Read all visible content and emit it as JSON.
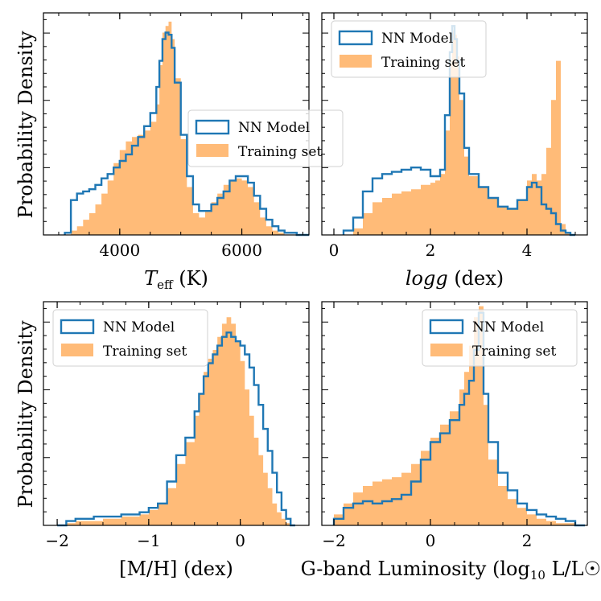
{
  "figure": {
    "ylabel_left": "Probability Density"
  },
  "colors": {
    "model": "#1f77b4",
    "training": "#ffbb78"
  },
  "chart_data": [
    {
      "type": "histogram",
      "panel": "top-left",
      "xlabel": "T_eff (K)",
      "xlabel_main": "T",
      "xlabel_sub": "eff",
      "xlabel_unit": " (K)",
      "xlim": [
        2750,
        7100
      ],
      "ylim": [
        0,
        1.0
      ],
      "xticks": [
        4000,
        6000
      ],
      "xtick_labels": [
        "4000",
        "6000"
      ],
      "legend": {
        "position": "center-right",
        "model_label": "NN Model",
        "training_label": "Training set"
      },
      "series": [
        {
          "name": "NN Model",
          "style": "step",
          "x": [
            3100,
            3200,
            3300,
            3400,
            3500,
            3600,
            3700,
            3800,
            3900,
            4000,
            4100,
            4200,
            4300,
            4400,
            4500,
            4600,
            4650,
            4700,
            4750,
            4800,
            4850,
            4900,
            5000,
            5100,
            5200,
            5300,
            5400,
            5500,
            5600,
            5700,
            5800,
            5900,
            6000,
            6100,
            6200,
            6300,
            6400,
            6500,
            6600,
            6700,
            6800,
            6900,
            7000
          ],
          "values": [
            0.01,
            0.16,
            0.19,
            0.2,
            0.21,
            0.23,
            0.26,
            0.28,
            0.31,
            0.34,
            0.37,
            0.41,
            0.45,
            0.5,
            0.56,
            0.68,
            0.8,
            0.9,
            0.93,
            0.92,
            0.86,
            0.7,
            0.46,
            0.27,
            0.14,
            0.11,
            0.11,
            0.14,
            0.17,
            0.2,
            0.25,
            0.27,
            0.27,
            0.24,
            0.18,
            0.12,
            0.07,
            0.04,
            0.02,
            0.01,
            0.01,
            0.0,
            0.0
          ]
        },
        {
          "name": "Training set",
          "style": "filled",
          "x": [
            3100,
            3200,
            3300,
            3400,
            3500,
            3600,
            3700,
            3800,
            3900,
            4000,
            4100,
            4200,
            4300,
            4400,
            4500,
            4600,
            4650,
            4700,
            4750,
            4800,
            4850,
            4900,
            5000,
            5100,
            5200,
            5300,
            5400,
            5500,
            5600,
            5700,
            5800,
            5900,
            6000,
            6100,
            6200,
            6300,
            6400,
            6500,
            6600,
            6700,
            6800,
            6900,
            7000
          ],
          "values": [
            0.0,
            0.02,
            0.04,
            0.07,
            0.1,
            0.14,
            0.19,
            0.25,
            0.33,
            0.39,
            0.43,
            0.45,
            0.46,
            0.48,
            0.52,
            0.6,
            0.78,
            0.93,
            0.96,
            0.98,
            0.9,
            0.72,
            0.44,
            0.22,
            0.1,
            0.08,
            0.11,
            0.15,
            0.19,
            0.23,
            0.25,
            0.26,
            0.25,
            0.22,
            0.15,
            0.08,
            0.04,
            0.02,
            0.01,
            0.0,
            0.0,
            0.0,
            0.0
          ]
        }
      ]
    },
    {
      "type": "histogram",
      "panel": "top-right",
      "xlabel": "logg (dex)",
      "xlabel_main": "logg",
      "xlabel_sub": "",
      "xlabel_unit": " (dex)",
      "xlim": [
        -0.25,
        5.25
      ],
      "ylim": [
        0,
        1.0
      ],
      "xticks": [
        0,
        2,
        4
      ],
      "xtick_labels": [
        "0",
        "2",
        "4"
      ],
      "legend": {
        "position": "top-left",
        "model_label": "NN Model",
        "training_label": "Training set"
      },
      "series": [
        {
          "name": "NN Model",
          "style": "step",
          "x": [
            0.2,
            0.4,
            0.6,
            0.8,
            1.0,
            1.2,
            1.4,
            1.6,
            1.8,
            2.0,
            2.1,
            2.2,
            2.3,
            2.4,
            2.45,
            2.5,
            2.55,
            2.6,
            2.7,
            2.8,
            3.0,
            3.2,
            3.4,
            3.6,
            3.8,
            4.0,
            4.1,
            4.2,
            4.3,
            4.4,
            4.5,
            4.6,
            4.7,
            4.8,
            4.9
          ],
          "values": [
            0.02,
            0.08,
            0.2,
            0.26,
            0.28,
            0.29,
            0.3,
            0.31,
            0.3,
            0.27,
            0.27,
            0.3,
            0.55,
            0.84,
            0.96,
            0.9,
            0.8,
            0.65,
            0.4,
            0.28,
            0.22,
            0.17,
            0.13,
            0.12,
            0.16,
            0.22,
            0.24,
            0.22,
            0.14,
            0.12,
            0.1,
            0.05,
            0.02,
            0.01,
            0.0
          ]
        },
        {
          "name": "Training set",
          "style": "filled",
          "x": [
            0.2,
            0.4,
            0.6,
            0.8,
            1.0,
            1.2,
            1.4,
            1.6,
            1.8,
            2.0,
            2.1,
            2.2,
            2.3,
            2.4,
            2.45,
            2.5,
            2.55,
            2.6,
            2.7,
            2.8,
            3.0,
            3.2,
            3.4,
            3.6,
            3.8,
            4.0,
            4.1,
            4.2,
            4.3,
            4.4,
            4.5,
            4.6,
            4.7,
            4.8,
            4.9
          ],
          "values": [
            0.0,
            0.03,
            0.1,
            0.15,
            0.17,
            0.19,
            0.2,
            0.21,
            0.23,
            0.24,
            0.25,
            0.28,
            0.48,
            0.8,
            0.94,
            0.92,
            0.82,
            0.62,
            0.36,
            0.27,
            0.22,
            0.17,
            0.13,
            0.12,
            0.16,
            0.25,
            0.28,
            0.25,
            0.28,
            0.4,
            0.62,
            0.8,
            0.05,
            0.01,
            0.0
          ]
        }
      ]
    },
    {
      "type": "histogram",
      "panel": "bottom-left",
      "xlabel": "[M/H] (dex)",
      "xlabel_main": "[M/H]",
      "xlabel_sub": "",
      "xlabel_unit": " (dex)",
      "xlim": [
        -2.15,
        0.75
      ],
      "ylim": [
        0,
        1.0
      ],
      "xticks": [
        -2,
        -1,
        0
      ],
      "xtick_labels": [
        "−2",
        "−1",
        "0"
      ],
      "legend": {
        "position": "top-left",
        "model_label": "NN Model",
        "training_label": "Training set"
      },
      "series": [
        {
          "name": "NN Model",
          "style": "step",
          "x": [
            -2.0,
            -1.9,
            -1.8,
            -1.7,
            -1.6,
            -1.5,
            -1.4,
            -1.3,
            -1.2,
            -1.1,
            -1.0,
            -0.9,
            -0.8,
            -0.7,
            -0.6,
            -0.5,
            -0.45,
            -0.4,
            -0.35,
            -0.3,
            -0.25,
            -0.2,
            -0.15,
            -0.1,
            -0.05,
            0.0,
            0.05,
            0.1,
            0.15,
            0.2,
            0.25,
            0.3,
            0.35,
            0.4,
            0.45,
            0.5,
            0.55
          ],
          "values": [
            0.0,
            0.02,
            0.03,
            0.03,
            0.04,
            0.04,
            0.04,
            0.05,
            0.05,
            0.06,
            0.08,
            0.1,
            0.2,
            0.32,
            0.4,
            0.52,
            0.6,
            0.68,
            0.74,
            0.78,
            0.82,
            0.86,
            0.88,
            0.86,
            0.84,
            0.82,
            0.78,
            0.72,
            0.64,
            0.55,
            0.44,
            0.34,
            0.24,
            0.15,
            0.07,
            0.03,
            0.0
          ]
        },
        {
          "name": "Training set",
          "style": "filled",
          "x": [
            -2.0,
            -1.9,
            -1.8,
            -1.7,
            -1.6,
            -1.5,
            -1.4,
            -1.3,
            -1.2,
            -1.1,
            -1.0,
            -0.9,
            -0.8,
            -0.7,
            -0.6,
            -0.5,
            -0.45,
            -0.4,
            -0.35,
            -0.3,
            -0.25,
            -0.2,
            -0.15,
            -0.1,
            -0.05,
            0.0,
            0.05,
            0.1,
            0.15,
            0.2,
            0.25,
            0.3,
            0.35,
            0.4,
            0.45,
            0.5,
            0.55
          ],
          "values": [
            0.0,
            0.01,
            0.02,
            0.02,
            0.02,
            0.03,
            0.03,
            0.04,
            0.04,
            0.05,
            0.07,
            0.1,
            0.17,
            0.28,
            0.38,
            0.5,
            0.6,
            0.7,
            0.76,
            0.8,
            0.86,
            0.92,
            0.95,
            0.92,
            0.84,
            0.75,
            0.62,
            0.5,
            0.4,
            0.32,
            0.24,
            0.17,
            0.1,
            0.06,
            0.03,
            0.01,
            0.0
          ]
        }
      ]
    },
    {
      "type": "histogram",
      "panel": "bottom-right",
      "xlabel": "G-band Luminosity (log10 L/L☉)",
      "xlabel_main": "G-band Luminosity (log",
      "xlabel_sub": "10",
      "xlabel_unit": " L/L☉)",
      "xlim": [
        -2.25,
        3.25
      ],
      "ylim": [
        0,
        1.0
      ],
      "xticks": [
        -2,
        0,
        2
      ],
      "xtick_labels": [
        "−2",
        "0",
        "2"
      ],
      "legend": {
        "position": "top-right",
        "model_label": "NN Model",
        "training_label": "Training set"
      },
      "series": [
        {
          "name": "NN Model",
          "style": "step",
          "x": [
            -2.0,
            -1.8,
            -1.6,
            -1.4,
            -1.2,
            -1.0,
            -0.8,
            -0.6,
            -0.4,
            -0.2,
            0.0,
            0.2,
            0.4,
            0.6,
            0.7,
            0.8,
            0.9,
            1.0,
            1.1,
            1.2,
            1.4,
            1.6,
            1.8,
            2.0,
            2.2,
            2.4,
            2.6,
            2.8,
            3.0
          ],
          "values": [
            0.03,
            0.08,
            0.1,
            0.11,
            0.1,
            0.11,
            0.12,
            0.14,
            0.2,
            0.3,
            0.38,
            0.42,
            0.48,
            0.55,
            0.6,
            0.66,
            0.8,
            0.97,
            0.6,
            0.38,
            0.24,
            0.16,
            0.1,
            0.07,
            0.05,
            0.04,
            0.03,
            0.02,
            0.0
          ]
        },
        {
          "name": "Training set",
          "style": "filled",
          "x": [
            -2.0,
            -1.8,
            -1.6,
            -1.4,
            -1.2,
            -1.0,
            -0.8,
            -0.6,
            -0.4,
            -0.2,
            0.0,
            0.2,
            0.4,
            0.6,
            0.7,
            0.8,
            0.9,
            1.0,
            1.1,
            1.2,
            1.4,
            1.6,
            1.8,
            2.0,
            2.2,
            2.4,
            2.6,
            2.8,
            3.0
          ],
          "values": [
            0.05,
            0.1,
            0.15,
            0.18,
            0.2,
            0.21,
            0.22,
            0.24,
            0.28,
            0.34,
            0.4,
            0.46,
            0.52,
            0.62,
            0.7,
            0.82,
            0.95,
            1.0,
            0.55,
            0.3,
            0.18,
            0.12,
            0.08,
            0.05,
            0.03,
            0.02,
            0.01,
            0.01,
            0.0
          ]
        }
      ]
    }
  ]
}
